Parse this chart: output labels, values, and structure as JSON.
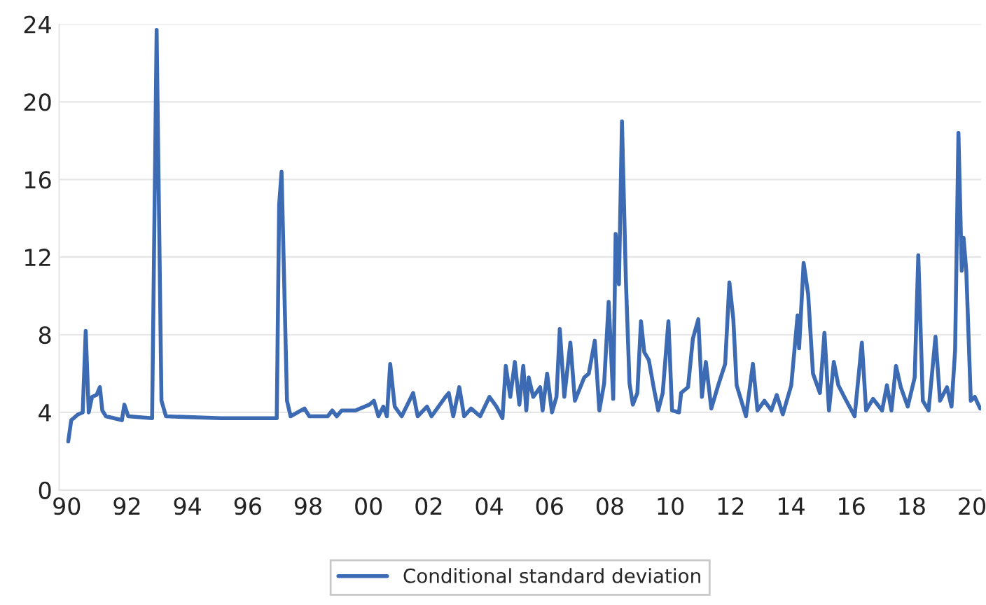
{
  "chart_data": {
    "type": "line",
    "x": [
      1990.05,
      1990.15,
      1990.38,
      1990.53,
      1990.63,
      1990.73,
      1990.84,
      1990.99,
      1991.1,
      1991.18,
      1991.3,
      1991.83,
      1991.91,
      1992.04,
      1992.83,
      1992.98,
      1993.14,
      1993.29,
      1995.13,
      1996.96,
      1997.04,
      1997.12,
      1997.3,
      1997.42,
      1997.88,
      1998.04,
      1998.65,
      1998.8,
      1998.95,
      1999.11,
      1999.57,
      2000.03,
      2000.18,
      2000.33,
      2000.49,
      2000.61,
      2000.72,
      2000.87,
      2001.1,
      2001.48,
      2001.63,
      2001.94,
      2002.09,
      2002.55,
      2002.66,
      2002.81,
      2003.01,
      2003.17,
      2003.4,
      2003.7,
      2004.01,
      2004.24,
      2004.44,
      2004.55,
      2004.7,
      2004.85,
      2005.0,
      2005.13,
      2005.23,
      2005.31,
      2005.46,
      2005.69,
      2005.77,
      2005.92,
      2006.08,
      2006.23,
      2006.34,
      2006.49,
      2006.69,
      2006.84,
      2007.15,
      2007.3,
      2007.5,
      2007.65,
      2007.81,
      2007.96,
      2008.11,
      2008.19,
      2008.3,
      2008.4,
      2008.53,
      2008.65,
      2008.76,
      2008.91,
      2009.03,
      2009.14,
      2009.29,
      2009.45,
      2009.6,
      2009.75,
      2009.94,
      2010.06,
      2010.29,
      2010.36,
      2010.59,
      2010.75,
      2010.93,
      2011.05,
      2011.18,
      2011.36,
      2011.59,
      2011.82,
      2011.96,
      2012.09,
      2012.2,
      2012.51,
      2012.74,
      2012.89,
      2013.12,
      2013.35,
      2013.53,
      2013.73,
      2014.01,
      2014.22,
      2014.27,
      2014.42,
      2014.57,
      2014.73,
      2014.96,
      2015.11,
      2015.26,
      2015.42,
      2015.57,
      2015.8,
      2016.11,
      2016.35,
      2016.49,
      2016.72,
      2017.02,
      2017.18,
      2017.33,
      2017.48,
      2017.64,
      2017.87,
      2018.1,
      2018.22,
      2018.37,
      2018.56,
      2018.79,
      2018.94,
      2019.17,
      2019.32,
      2019.44,
      2019.55,
      2019.66,
      2019.72,
      2019.81,
      2019.96,
      2020.09,
      2020.27
    ],
    "series": [
      {
        "name": "Conditional standard deviation",
        "color": "#3d6bb3",
        "values": [
          2.5,
          3.6,
          3.9,
          4.0,
          8.2,
          4.0,
          4.8,
          4.9,
          5.3,
          4.1,
          3.8,
          3.6,
          4.4,
          3.8,
          3.7,
          23.7,
          4.6,
          3.8,
          3.7,
          3.7,
          14.7,
          16.4,
          4.6,
          3.8,
          4.2,
          3.8,
          3.8,
          4.1,
          3.8,
          4.1,
          4.1,
          4.4,
          4.6,
          3.8,
          4.3,
          3.8,
          6.5,
          4.3,
          3.8,
          5.0,
          3.8,
          4.3,
          3.8,
          4.8,
          5.0,
          3.8,
          5.3,
          3.8,
          4.2,
          3.8,
          4.8,
          4.3,
          3.7,
          6.4,
          4.8,
          6.6,
          4.4,
          6.4,
          4.1,
          5.8,
          4.8,
          5.3,
          4.1,
          6.0,
          4.0,
          4.8,
          8.3,
          4.8,
          7.6,
          4.6,
          5.8,
          6.0,
          7.7,
          4.1,
          5.5,
          9.7,
          4.7,
          13.2,
          10.6,
          19.0,
          10.8,
          5.5,
          4.4,
          5.0,
          8.7,
          7.1,
          6.7,
          5.3,
          4.1,
          5.0,
          8.7,
          4.1,
          4.0,
          5.0,
          5.3,
          7.8,
          8.8,
          4.8,
          6.6,
          4.2,
          5.4,
          6.5,
          10.7,
          8.8,
          5.4,
          3.8,
          6.5,
          4.1,
          4.6,
          4.1,
          4.9,
          3.9,
          5.4,
          9.0,
          7.3,
          11.7,
          10.1,
          6.0,
          5.0,
          8.1,
          4.1,
          6.6,
          5.4,
          4.7,
          3.8,
          7.6,
          4.1,
          4.7,
          4.1,
          5.4,
          4.1,
          6.4,
          5.3,
          4.3,
          5.8,
          12.1,
          4.6,
          4.1,
          7.9,
          4.6,
          5.3,
          4.3,
          7.2,
          18.4,
          11.3,
          13.0,
          11.3,
          4.6,
          4.8,
          4.2
        ]
      }
    ],
    "xlim": [
      1989.75,
      2020.3
    ],
    "xticks": [
      {
        "value": 1990,
        "label": "90"
      },
      {
        "value": 1992,
        "label": "92"
      },
      {
        "value": 1994,
        "label": "94"
      },
      {
        "value": 1996,
        "label": "96"
      },
      {
        "value": 1998,
        "label": "98"
      },
      {
        "value": 2000,
        "label": "00"
      },
      {
        "value": 2002,
        "label": "02"
      },
      {
        "value": 2004,
        "label": "04"
      },
      {
        "value": 2006,
        "label": "06"
      },
      {
        "value": 2008,
        "label": "08"
      },
      {
        "value": 2010,
        "label": "10"
      },
      {
        "value": 2012,
        "label": "12"
      },
      {
        "value": 2014,
        "label": "14"
      },
      {
        "value": 2016,
        "label": "16"
      },
      {
        "value": 2018,
        "label": "18"
      },
      {
        "value": 2020,
        "label": "20"
      }
    ],
    "ylim": [
      0,
      24
    ],
    "yticks": [
      0,
      4,
      8,
      12,
      16,
      20,
      24
    ],
    "grid": "y",
    "legend": "bottom",
    "marker": "none",
    "line_style": "solid"
  }
}
